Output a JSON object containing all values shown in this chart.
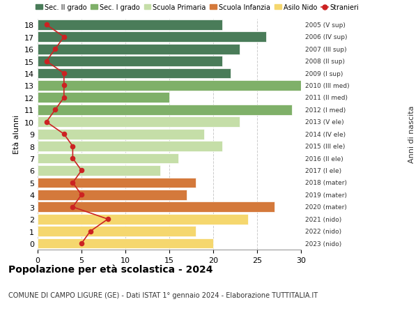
{
  "ages": [
    18,
    17,
    16,
    15,
    14,
    13,
    12,
    11,
    10,
    9,
    8,
    7,
    6,
    5,
    4,
    3,
    2,
    1,
    0
  ],
  "right_labels": [
    "2005 (V sup)",
    "2006 (IV sup)",
    "2007 (III sup)",
    "2008 (II sup)",
    "2009 (I sup)",
    "2010 (III med)",
    "2011 (II med)",
    "2012 (I med)",
    "2013 (V ele)",
    "2014 (IV ele)",
    "2015 (III ele)",
    "2016 (II ele)",
    "2017 (I ele)",
    "2018 (mater)",
    "2019 (mater)",
    "2020 (mater)",
    "2021 (nido)",
    "2022 (nido)",
    "2023 (nido)"
  ],
  "bar_values": [
    21,
    26,
    23,
    21,
    22,
    30,
    15,
    29,
    23,
    19,
    21,
    16,
    14,
    18,
    17,
    27,
    24,
    18,
    20
  ],
  "bar_colors": [
    "#4a7c59",
    "#4a7c59",
    "#4a7c59",
    "#4a7c59",
    "#4a7c59",
    "#7fb069",
    "#7fb069",
    "#7fb069",
    "#c5dea8",
    "#c5dea8",
    "#c5dea8",
    "#c5dea8",
    "#c5dea8",
    "#d4793b",
    "#d4793b",
    "#d4793b",
    "#f5d76e",
    "#f5d76e",
    "#f5d76e"
  ],
  "stranieri_values": [
    1,
    3,
    2,
    1,
    3,
    3,
    3,
    2,
    1,
    3,
    4,
    4,
    5,
    4,
    5,
    4,
    8,
    6,
    5
  ],
  "legend_labels": [
    "Sec. II grado",
    "Sec. I grado",
    "Scuola Primaria",
    "Scuola Infanzia",
    "Asilo Nido",
    "Stranieri"
  ],
  "legend_colors": [
    "#4a7c59",
    "#7fb069",
    "#c5dea8",
    "#d4793b",
    "#f5d76e",
    "#cc2222"
  ],
  "ylabel": "Età alunni",
  "right_ylabel": "Anni di nascita",
  "title": "Popolazione per età scolastica - 2024",
  "subtitle": "COMUNE DI CAMPO LIGURE (GE) - Dati ISTAT 1° gennaio 2024 - Elaborazione TUTTITALIA.IT",
  "xlim": [
    0,
    30
  ],
  "background_color": "#ffffff",
  "bar_edge_color": "#ffffff",
  "stranieri_color": "#cc2222"
}
